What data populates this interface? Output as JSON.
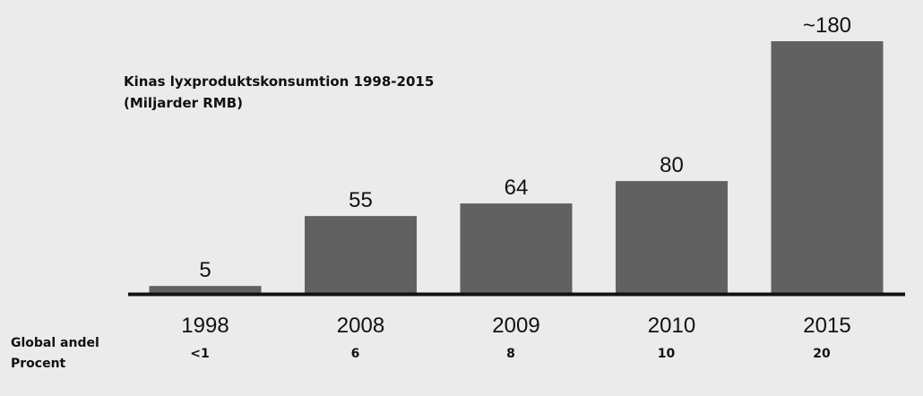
{
  "chart_data": {
    "type": "bar",
    "title": "Kinas lyxproduktskonsumtion 1998-2015",
    "subtitle": "(Miljarder RMB)",
    "categories": [
      "1998",
      "2008",
      "2009",
      "2010",
      "2015"
    ],
    "values": [
      5,
      55,
      64,
      80,
      180
    ],
    "value_labels": [
      "5",
      "55",
      "64",
      "80",
      "~180"
    ],
    "ylim": [
      0,
      180
    ],
    "grid": false,
    "bar_color": "#616161",
    "axis_color": "#111111",
    "share_row": {
      "label_line1": "Global andel",
      "label_line2": "Procent",
      "values": [
        "<1",
        "6",
        "8",
        "10",
        "20"
      ]
    }
  }
}
